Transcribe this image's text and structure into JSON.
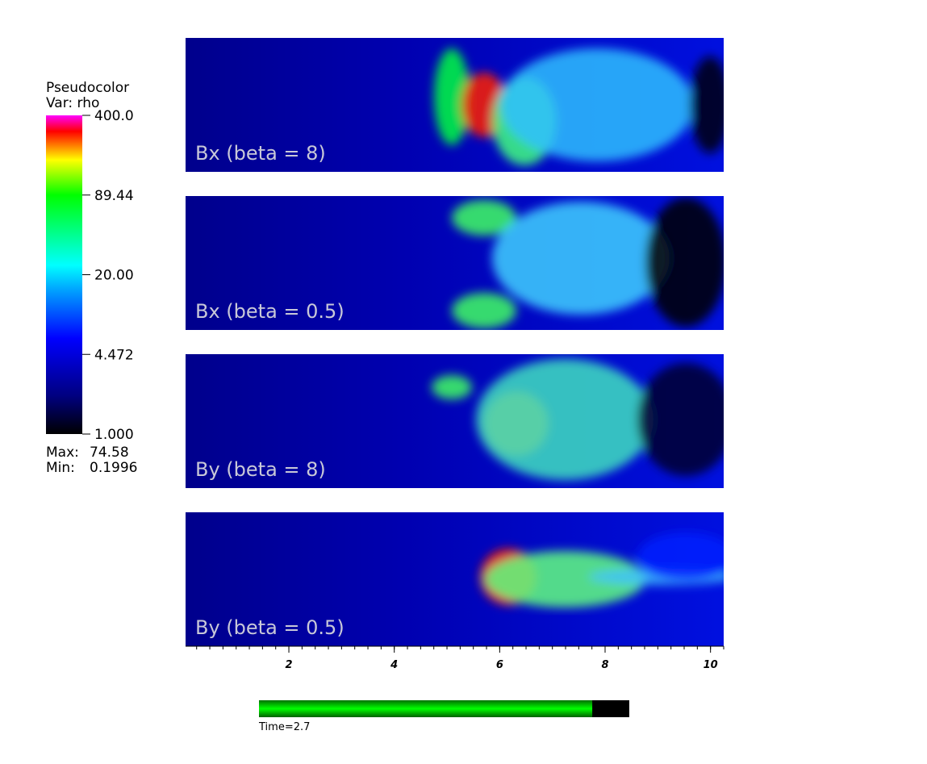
{
  "chart_data": {
    "type": "pseudocolor",
    "legend": {
      "title": "Pseudocolor",
      "variable": "Var: rho",
      "scale": "log",
      "lim": [
        1,
        400
      ],
      "ticks": [
        {
          "value": 400,
          "label": "400.0"
        },
        89.44,
        {
          "value": 20,
          "label": "20.00"
        },
        4.472,
        {
          "value": 1,
          "label": "1.000"
        }
      ],
      "max_label": "Max:",
      "max": 74.58,
      "min_label": "Min:",
      "min": 0.1996
    },
    "panels": [
      "Bx (beta = 8)",
      "Bx (beta = 0.5)",
      "By (beta = 8)",
      "By (beta = 0.5)"
    ],
    "xlim": [
      0.04,
      10.25
    ],
    "xticks": [
      2,
      4,
      6,
      8,
      10
    ],
    "minor_tick_step": 0.25,
    "time": {
      "label": "Time=2.7",
      "value": 2.7,
      "range": [
        0,
        3.0
      ]
    }
  }
}
